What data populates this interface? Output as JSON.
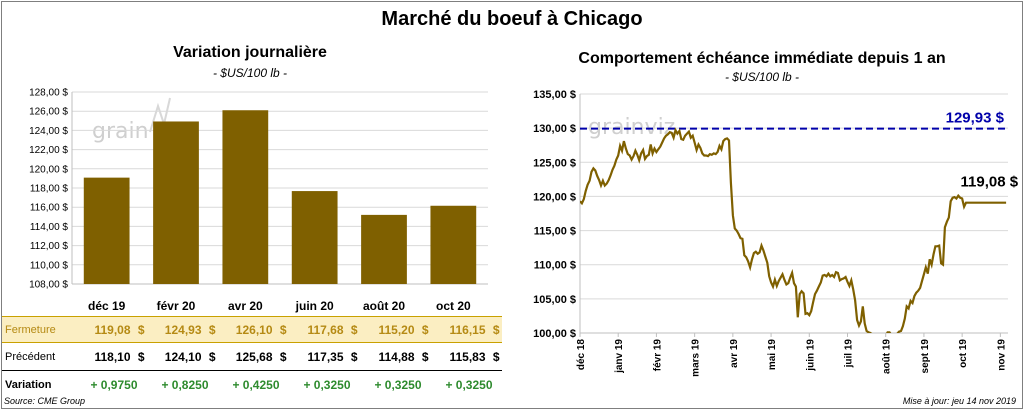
{
  "title": "Marché du boeuf à Chicago",
  "left_panel": {
    "title": "Variation  journalière",
    "subtitle": "- $US/100 lb -"
  },
  "right_panel": {
    "title": "Comportement  échéance immédiate depuis 1 an",
    "subtitle": "- $US/100 lb -"
  },
  "watermark": "grain",
  "table": {
    "rows": [
      {
        "label": "Fermeture",
        "values": [
          "119,08",
          "124,93",
          "126,10",
          "117,68",
          "115,20",
          "116,15"
        ],
        "currency": "$"
      },
      {
        "label": "Précédent",
        "values": [
          "118,10",
          "124,10",
          "125,68",
          "117,35",
          "114,88",
          "115,83"
        ],
        "currency": "$"
      },
      {
        "label": "Variation",
        "values": [
          "+ 0,9750",
          "+ 0,8250",
          "+ 0,4250",
          "+ 0,3250",
          "+ 0,3250",
          "+ 0,3250"
        ]
      }
    ]
  },
  "footer": {
    "source": "Source: CME Group",
    "update": "Mise à jour: jeu 14 nov 2019"
  },
  "colors": {
    "bar": "#7f6000",
    "line": "#7f6000",
    "ref_line": "#0000aa",
    "fermeture_bg": "#fbeec2",
    "fermeture_text": "#b58a14",
    "variation_text": "#2e8b2e"
  },
  "chart_data": [
    {
      "type": "bar",
      "categories": [
        "déc 19",
        "févr 20",
        "avr 20",
        "juin 20",
        "août 20",
        "oct 20"
      ],
      "values": [
        119.08,
        124.93,
        126.1,
        117.68,
        115.2,
        116.15
      ],
      "ylim": [
        108,
        128
      ],
      "yticks": [
        108,
        110,
        112,
        114,
        116,
        118,
        120,
        122,
        124,
        126,
        128
      ],
      "ytick_labels": [
        "108,00 $",
        "110,00 $",
        "112,00 $",
        "114,00 $",
        "116,00 $",
        "118,00 $",
        "120,00 $",
        "122,00 $",
        "124,00 $",
        "126,00 $",
        "128,00 $"
      ],
      "grid": true
    },
    {
      "type": "line",
      "x_labels": [
        "déc 18",
        "janv 19",
        "févr 19",
        "mars 19",
        "avr 19",
        "mai 19",
        "juin 19",
        "juil 19",
        "août 19",
        "sept 19",
        "oct 19",
        "nov 19"
      ],
      "ylim": [
        100,
        135
      ],
      "yticks": [
        100,
        105,
        110,
        115,
        120,
        125,
        130,
        135
      ],
      "ytick_labels": [
        "100,00 $",
        "105,00 $",
        "110,00 $",
        "115,00 $",
        "120,00 $",
        "125,00 $",
        "130,00 $",
        "135,00 $"
      ],
      "reference_line": {
        "value": 129.93,
        "label": "129,93 $"
      },
      "last_label": "119,08 $",
      "grid": true,
      "series": [
        {
          "x": [
            0.0,
            0.05,
            0.1,
            0.15,
            0.2,
            0.25,
            0.3,
            0.35,
            0.4,
            0.45,
            0.5,
            0.55,
            0.6,
            0.65,
            0.7,
            0.75,
            0.8,
            0.85,
            0.9,
            0.95,
            1.0,
            1.05,
            1.1,
            1.15,
            1.2,
            1.25,
            1.3,
            1.35,
            1.4,
            1.45,
            1.5,
            1.55,
            1.6,
            1.65,
            1.7,
            1.75,
            1.8,
            1.85,
            1.9,
            1.95,
            2.0,
            2.05,
            2.1,
            2.15,
            2.2,
            2.25,
            2.3,
            2.35,
            2.4,
            2.45,
            2.5,
            2.55,
            2.6,
            2.65,
            2.7,
            2.75,
            2.8,
            2.85,
            2.9,
            2.95,
            3.0,
            3.05,
            3.1,
            3.15,
            3.2,
            3.25,
            3.3,
            3.35,
            3.4,
            3.45,
            3.5,
            3.55,
            3.6,
            3.65,
            3.7,
            3.75,
            3.8,
            3.85,
            3.9,
            3.95,
            4.0,
            4.05,
            4.1,
            4.15,
            4.2,
            4.25,
            4.3,
            4.35,
            4.4,
            4.45,
            4.5,
            4.55,
            4.6,
            4.65,
            4.7,
            4.75,
            4.8,
            4.85,
            4.9,
            4.95,
            5.0,
            5.05,
            5.1,
            5.15,
            5.2,
            5.25,
            5.3,
            5.35,
            5.4,
            5.45,
            5.5,
            5.55,
            5.6,
            5.65,
            5.7,
            5.75,
            5.8,
            5.85,
            5.9,
            5.95,
            6.0,
            6.05,
            6.1,
            6.15,
            6.2,
            6.25,
            6.3,
            6.35,
            6.4,
            6.45,
            6.5,
            6.55,
            6.6,
            6.65,
            6.7,
            6.75,
            6.8,
            6.85,
            6.9,
            6.95,
            7.0,
            7.05,
            7.1,
            7.15,
            7.2,
            7.25,
            7.3,
            7.35,
            7.4,
            7.45,
            7.5,
            7.55,
            7.6,
            7.65,
            7.7,
            7.75,
            7.8,
            7.85,
            7.9,
            7.95,
            8.0,
            8.05,
            8.1,
            8.15,
            8.2,
            8.25,
            8.3,
            8.35,
            8.4,
            8.45,
            8.5,
            8.55,
            8.6,
            8.65,
            8.7,
            8.75,
            8.8,
            8.85,
            8.9,
            8.95,
            9.0,
            9.05,
            9.1,
            9.15,
            9.2,
            9.25,
            9.3,
            9.35,
            9.4,
            9.45,
            9.5,
            9.55,
            9.6,
            9.65,
            9.7,
            9.75,
            9.8,
            9.85,
            9.9,
            9.95,
            10.0,
            10.05,
            10.1,
            10.15,
            10.2,
            10.25,
            10.3,
            10.35,
            10.4,
            10.45,
            10.5,
            10.55,
            10.6,
            10.65,
            10.7,
            10.75,
            10.8,
            10.85,
            10.9,
            10.95,
            11.0,
            11.05,
            11.1,
            11.15
          ],
          "y": [
            119.3,
            119.0,
            119.6,
            120.8,
            121.7,
            122.3,
            123.6,
            124.1,
            123.8,
            123.0,
            122.4,
            121.6,
            122.3,
            121.6,
            121.9,
            122.4,
            123.1,
            123.9,
            124.5,
            125.4,
            126.0,
            127.4,
            126.7,
            128.1,
            127.0,
            126.2,
            126.0,
            125.4,
            125.9,
            126.7,
            126.1,
            125.3,
            126.3,
            126.8,
            125.5,
            125.9,
            126.1,
            127.6,
            126.3,
            127.0,
            126.5,
            126.9,
            127.3,
            127.9,
            128.5,
            128.9,
            129.1,
            129.4,
            129.3,
            128.6,
            129.7,
            129.2,
            129.6,
            128.4,
            128.3,
            128.9,
            129.2,
            129.5,
            128.6,
            128.9,
            127.9,
            126.8,
            127.6,
            127.1,
            126.3,
            126.0,
            126.0,
            125.9,
            126.2,
            126.1,
            126.3,
            126.2,
            126.5,
            127.4,
            126.9,
            128.1,
            128.4,
            128.5,
            128.2,
            122.0,
            117.2,
            115.3,
            115.0,
            114.5,
            113.9,
            113.8,
            111.4,
            111.1,
            110.5,
            109.6,
            110.8,
            111.7,
            111.9,
            111.6,
            111.8,
            112.8,
            112.1,
            111.2,
            110.3,
            108.3,
            107.4,
            106.8,
            107.8,
            106.9,
            107.6,
            108.1,
            108.6,
            107.8,
            107.1,
            107.3,
            108.1,
            108.8,
            107.3,
            106.8,
            102.3,
            105.7,
            106.1,
            105.8,
            102.8,
            102.9,
            102.6,
            103.2,
            104.5,
            105.7,
            106.2,
            106.8,
            107.4,
            108.4,
            108.5,
            108.3,
            108.7,
            108.3,
            108.5,
            108.2,
            108.9,
            108.8,
            107.7,
            107.9,
            108.0,
            108.2,
            107.5,
            106.9,
            107.7,
            106.4,
            104.8,
            101.9,
            101.1,
            101.7,
            103.9,
            101.4,
            100.3,
            100.1,
            100.0,
            99.8,
            99.6,
            99.5,
            99.3,
            99.0,
            99.5,
            99.6,
            99.6,
            100.1,
            100.1,
            99.7,
            99.2,
            99.6,
            99.9,
            100.2,
            100.3,
            101.0,
            102.1,
            103.9,
            103.6,
            104.7,
            104.4,
            105.4,
            105.9,
            106.2,
            106.6,
            107.6,
            108.6,
            109.6,
            108.7,
            110.8,
            110.0,
            111.5,
            112.7,
            112.7,
            112.8,
            110.2,
            110.0,
            115.5,
            116.3,
            116.9,
            119.3,
            119.8,
            119.9,
            119.7,
            120.1,
            119.8,
            119.7,
            118.5,
            119.08,
            119.08,
            119.08,
            119.08,
            119.08,
            119.08,
            119.08,
            119.08,
            119.08,
            119.08,
            119.08,
            119.08,
            119.08,
            119.08,
            119.08,
            119.08,
            119.08,
            119.08,
            119.08,
            119.08,
            119.08,
            119.08
          ]
        }
      ]
    }
  ]
}
